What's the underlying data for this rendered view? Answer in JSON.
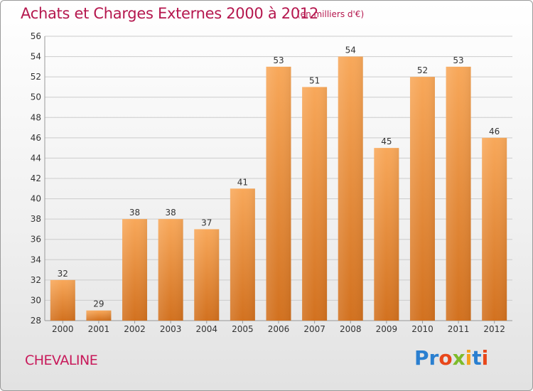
{
  "header": {
    "title": "Achats et Charges Externes 2000 à 2012",
    "subtitle": "(en milliers d'€)"
  },
  "footer": {
    "commune": "CHEVALINE",
    "logo_text": "Proxiti",
    "logo_letters": [
      {
        "ch": "P",
        "color": "#2a7fd0"
      },
      {
        "ch": "r",
        "color": "#2a7fd0"
      },
      {
        "ch": "o",
        "color": "#e8471a"
      },
      {
        "ch": "x",
        "color": "#7dbb2a"
      },
      {
        "ch": "i",
        "color": "#f4a11d"
      },
      {
        "ch": "t",
        "color": "#2a7fd0"
      },
      {
        "ch": "i",
        "color": "#e8471a"
      }
    ]
  },
  "colors": {
    "title": "#b5174e",
    "bar_top": "#f8a85a",
    "bar_bottom": "#d2711f",
    "grid": "#cccccc"
  },
  "chart_data": {
    "type": "bar",
    "categories": [
      "2000",
      "2001",
      "2002",
      "2003",
      "2004",
      "2005",
      "2006",
      "2007",
      "2008",
      "2009",
      "2010",
      "2011",
      "2012"
    ],
    "values": [
      32,
      29,
      38,
      38,
      37,
      41,
      53,
      51,
      54,
      45,
      52,
      53,
      46
    ],
    "ylim": [
      28,
      56
    ],
    "yticks": [
      28,
      30,
      32,
      34,
      36,
      38,
      40,
      42,
      44,
      46,
      48,
      50,
      52,
      54,
      56
    ],
    "grid": true,
    "data_labels": true
  }
}
